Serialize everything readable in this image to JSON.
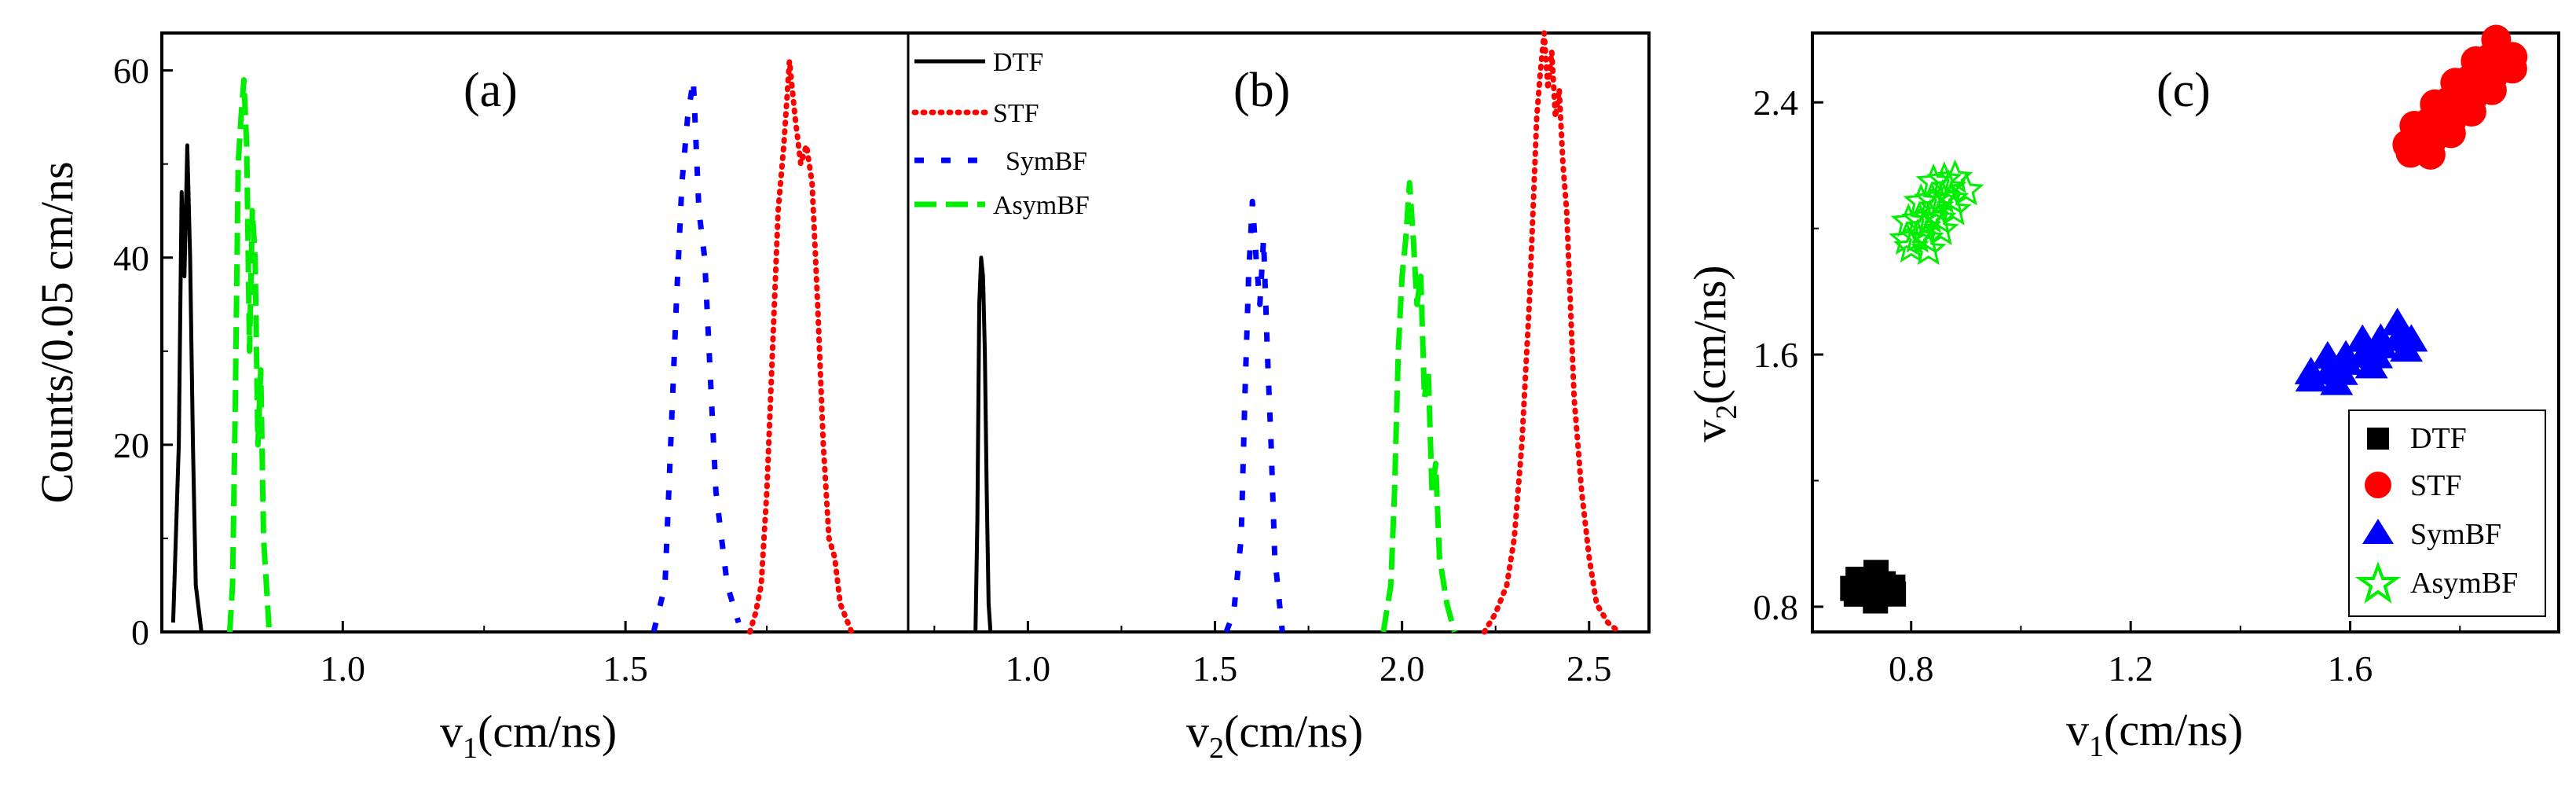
{
  "colors": {
    "DTF": "#000000",
    "STF": "#ff0000",
    "SymBF": "#0000ff",
    "AsymBF": "#00ee00"
  },
  "chart_data": [
    {
      "panel": "(a)",
      "type": "line",
      "xlabel_main": "v",
      "xlabel_sub": "1",
      "xlabel_unit": "(cm/ns)",
      "ylabel": "Counts/0.05 cm/ns",
      "xlim": [
        0.68,
        2.0
      ],
      "ylim": [
        0,
        64
      ],
      "xticks": [
        1.0,
        1.5
      ],
      "xtick_labels": [
        "1.0",
        "1.5"
      ],
      "yticks": [
        0,
        20,
        40,
        60
      ],
      "ytick_labels": [
        "0",
        "20",
        "40",
        "60"
      ],
      "series": [
        {
          "name": "DTF",
          "style": "solid",
          "x": [
            0.7,
            0.71,
            0.715,
            0.72,
            0.725,
            0.73,
            0.735,
            0.74,
            0.75
          ],
          "y": [
            1,
            20,
            47,
            38,
            52,
            40,
            20,
            5,
            0
          ]
        },
        {
          "name": "AsymBF",
          "style": "longdash",
          "x": [
            0.8,
            0.805,
            0.81,
            0.815,
            0.82,
            0.825,
            0.83,
            0.835,
            0.84,
            0.845,
            0.85,
            0.855,
            0.86,
            0.87
          ],
          "y": [
            0,
            5,
            25,
            50,
            55,
            59,
            52,
            30,
            45,
            40,
            20,
            28,
            10,
            0
          ]
        },
        {
          "name": "SymBF",
          "style": "dash",
          "x": [
            1.55,
            1.57,
            1.58,
            1.59,
            1.6,
            1.61,
            1.62,
            1.63,
            1.64,
            1.66,
            1.68,
            1.7
          ],
          "y": [
            0,
            5,
            20,
            35,
            48,
            55,
            59,
            45,
            40,
            15,
            5,
            1
          ]
        },
        {
          "name": "STF",
          "style": "dot",
          "x": [
            1.72,
            1.73,
            1.74,
            1.75,
            1.76,
            1.77,
            1.78,
            1.79,
            1.8,
            1.81,
            1.82,
            1.83,
            1.84,
            1.85,
            1.86,
            1.87,
            1.88,
            1.9
          ],
          "y": [
            0,
            2,
            5,
            15,
            30,
            45,
            52,
            61,
            55,
            50,
            52,
            48,
            35,
            20,
            10,
            8,
            3,
            0
          ]
        }
      ]
    },
    {
      "panel": "(b)",
      "type": "line",
      "xlabel_main": "v",
      "xlabel_sub": "2",
      "xlabel_unit": "(cm/ns)",
      "xlim": [
        0.68,
        2.66
      ],
      "ylim": [
        0,
        64
      ],
      "xticks": [
        1.0,
        1.5,
        2.0,
        2.5
      ],
      "xtick_labels": [
        "1.0",
        "1.5",
        "2.0",
        "2.5"
      ],
      "series": [
        {
          "name": "DTF",
          "style": "solid",
          "x": [
            0.86,
            0.865,
            0.87,
            0.875,
            0.88,
            0.885,
            0.89,
            0.895,
            0.9
          ],
          "y": [
            0,
            12,
            35,
            40,
            38,
            30,
            15,
            3,
            0
          ]
        },
        {
          "name": "SymBF",
          "style": "dash",
          "x": [
            1.53,
            1.55,
            1.57,
            1.58,
            1.59,
            1.6,
            1.61,
            1.62,
            1.63,
            1.64,
            1.65,
            1.66,
            1.68
          ],
          "y": [
            0,
            2,
            10,
            25,
            38,
            46,
            40,
            35,
            42,
            30,
            20,
            8,
            0
          ]
        },
        {
          "name": "AsymBF",
          "style": "longdash",
          "x": [
            1.95,
            1.97,
            1.98,
            1.99,
            2.0,
            2.01,
            2.02,
            2.03,
            2.04,
            2.05,
            2.06,
            2.07,
            2.08,
            2.09,
            2.1,
            2.12,
            2.14
          ],
          "y": [
            0,
            5,
            15,
            30,
            38,
            42,
            48,
            42,
            35,
            38,
            25,
            28,
            15,
            18,
            8,
            3,
            0
          ]
        },
        {
          "name": "STF",
          "style": "dot",
          "x": [
            2.22,
            2.25,
            2.28,
            2.3,
            2.32,
            2.34,
            2.35,
            2.36,
            2.37,
            2.38,
            2.39,
            2.4,
            2.41,
            2.42,
            2.43,
            2.44,
            2.45,
            2.46,
            2.48,
            2.5,
            2.52,
            2.55,
            2.58
          ],
          "y": [
            0,
            2,
            5,
            10,
            20,
            35,
            45,
            55,
            60,
            64,
            58,
            62,
            55,
            58,
            50,
            45,
            35,
            25,
            15,
            8,
            3,
            1,
            0
          ]
        }
      ],
      "legend": [
        "DTF",
        "STF",
        "SymBF",
        "AsymBF"
      ]
    },
    {
      "panel": "(c)",
      "type": "scatter",
      "xlabel_main": "v",
      "xlabel_sub": "1",
      "xlabel_unit": "(cm/ns)",
      "ylabel_main": "v",
      "ylabel_sub": "2",
      "ylabel_unit": "(cm/ns)",
      "xlim": [
        0.62,
        1.98
      ],
      "ylim": [
        0.72,
        2.62
      ],
      "xticks": [
        0.8,
        1.2,
        1.6
      ],
      "xtick_labels": [
        "0.8",
        "1.2",
        "1.6"
      ],
      "yticks": [
        0.8,
        1.6,
        2.4
      ],
      "ytick_labels": [
        "0.8",
        "1.6",
        "2.4"
      ],
      "series": [
        {
          "name": "DTF",
          "marker": "square",
          "cluster": {
            "x_start": 0.7,
            "y_start": 0.84,
            "x_end": 0.76,
            "y_end": 0.88,
            "count": 12
          }
        },
        {
          "name": "STF",
          "marker": "circle",
          "cluster": {
            "x_start": 1.71,
            "y_start": 2.24,
            "x_end": 1.89,
            "y_end": 2.57,
            "count": 30
          }
        },
        {
          "name": "SymBF",
          "marker": "triangle",
          "cluster": {
            "x_start": 1.53,
            "y_start": 1.52,
            "x_end": 1.71,
            "y_end": 1.67,
            "count": 18
          }
        },
        {
          "name": "AsymBF",
          "marker": "star",
          "cluster": {
            "x_start": 0.8,
            "y_start": 1.94,
            "x_end": 0.88,
            "y_end": 2.16,
            "count": 22
          }
        }
      ],
      "legend": [
        "DTF",
        "STF",
        "SymBF",
        "AsymBF"
      ]
    }
  ]
}
